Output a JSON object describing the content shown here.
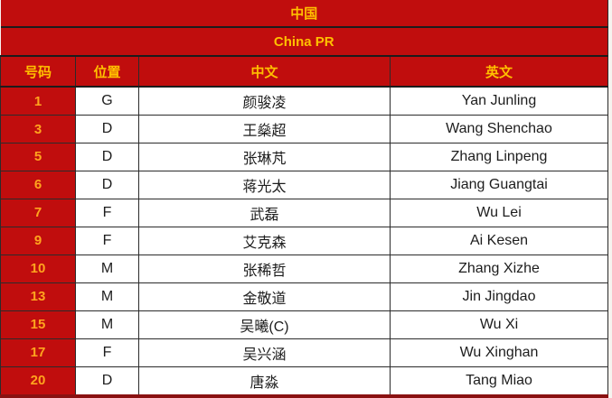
{
  "table": {
    "title_cn": "中国",
    "title_en": "China PR",
    "columns": {
      "number": "号码",
      "position": "位置",
      "name_cn": "中文",
      "name_en": "英文"
    }
  },
  "players": [
    {
      "number": "1",
      "position": "G",
      "name_cn": "颜骏凌",
      "name_en": "Yan Junling"
    },
    {
      "number": "3",
      "position": "D",
      "name_cn": "王燊超",
      "name_en": "Wang Shenchao"
    },
    {
      "number": "5",
      "position": "D",
      "name_cn": "张琳芃",
      "name_en": "Zhang Linpeng"
    },
    {
      "number": "6",
      "position": "D",
      "name_cn": "蒋光太",
      "name_en": "Jiang Guangtai"
    },
    {
      "number": "7",
      "position": "F",
      "name_cn": "武磊",
      "name_en": "Wu Lei"
    },
    {
      "number": "9",
      "position": "F",
      "name_cn": "艾克森",
      "name_en": "Ai Kesen"
    },
    {
      "number": "10",
      "position": "M",
      "name_cn": "张稀哲",
      "name_en": "Zhang Xizhe"
    },
    {
      "number": "13",
      "position": "M",
      "name_cn": "金敬道",
      "name_en": "Jin Jingdao"
    },
    {
      "number": "15",
      "position": "M",
      "name_cn": "吴曦(C)",
      "name_en": "Wu Xi"
    },
    {
      "number": "17",
      "position": "F",
      "name_cn": "吴兴涵",
      "name_en": "Wu Xinghan"
    },
    {
      "number": "20",
      "position": "D",
      "name_cn": "唐淼",
      "name_en": "Tang Miao"
    }
  ],
  "colors": {
    "banner_red": "#c00d0d",
    "header_gold": "#ffc000",
    "number_orange": "#ffa41e",
    "cell_text": "#1d1d1d",
    "grid_border": "#2b2b2b",
    "bottom_border_red": "#8a1111"
  }
}
